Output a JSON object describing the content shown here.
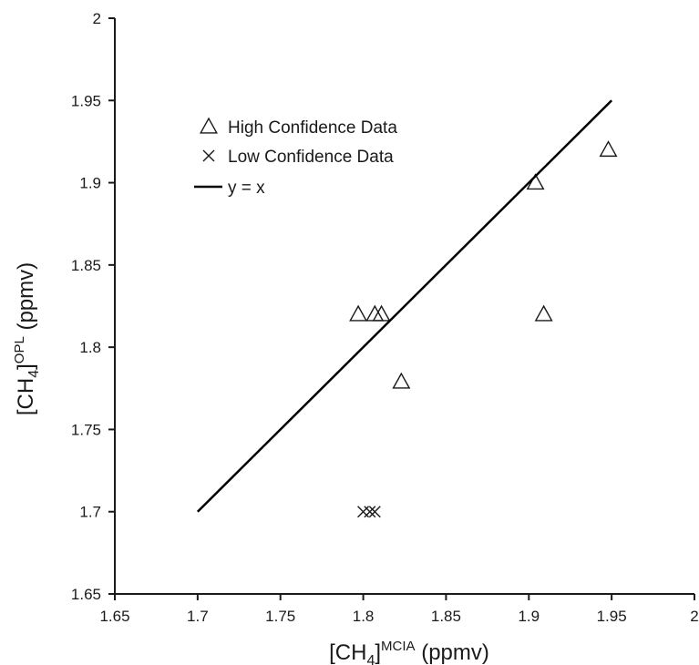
{
  "chart_data": {
    "type": "scatter",
    "title": "",
    "xlim": [
      1.65,
      2
    ],
    "ylim": [
      1.65,
      2
    ],
    "x_ticks": [
      "1.65",
      "1.7",
      "1.75",
      "1.8",
      "1.85",
      "1.9",
      "1.95",
      "2"
    ],
    "y_ticks": [
      "1.65",
      "1.7",
      "1.75",
      "1.8",
      "1.85",
      "1.9",
      "1.95",
      "2"
    ],
    "xlabel": {
      "base": "[CH",
      "sub": "4",
      "close": "]",
      "sup": "MCIA",
      "unit": " (ppmv)"
    },
    "ylabel": {
      "base": "[CH",
      "sub": "4",
      "close": "]",
      "sup": "OPL",
      "unit": " (ppmv)"
    },
    "grid": false,
    "legend_position": "top-left",
    "series": [
      {
        "name": "High Confidence Data",
        "marker": "triangle",
        "color": "#1a1a1a",
        "points": [
          {
            "x": 1.797,
            "y": 1.82
          },
          {
            "x": 1.807,
            "y": 1.82
          },
          {
            "x": 1.811,
            "y": 1.82
          },
          {
            "x": 1.823,
            "y": 1.779
          },
          {
            "x": 1.904,
            "y": 1.9
          },
          {
            "x": 1.909,
            "y": 1.82
          },
          {
            "x": 1.948,
            "y": 1.92
          }
        ]
      },
      {
        "name": "Low Confidence Data",
        "marker": "x",
        "color": "#1a1a1a",
        "points": [
          {
            "x": 1.8,
            "y": 1.7
          },
          {
            "x": 1.804,
            "y": 1.7
          },
          {
            "x": 1.807,
            "y": 1.7
          }
        ]
      },
      {
        "name": "y = x",
        "marker": "line",
        "color": "#000000",
        "points": [
          {
            "x": 1.7,
            "y": 1.7
          },
          {
            "x": 1.95,
            "y": 1.95
          }
        ]
      }
    ]
  }
}
